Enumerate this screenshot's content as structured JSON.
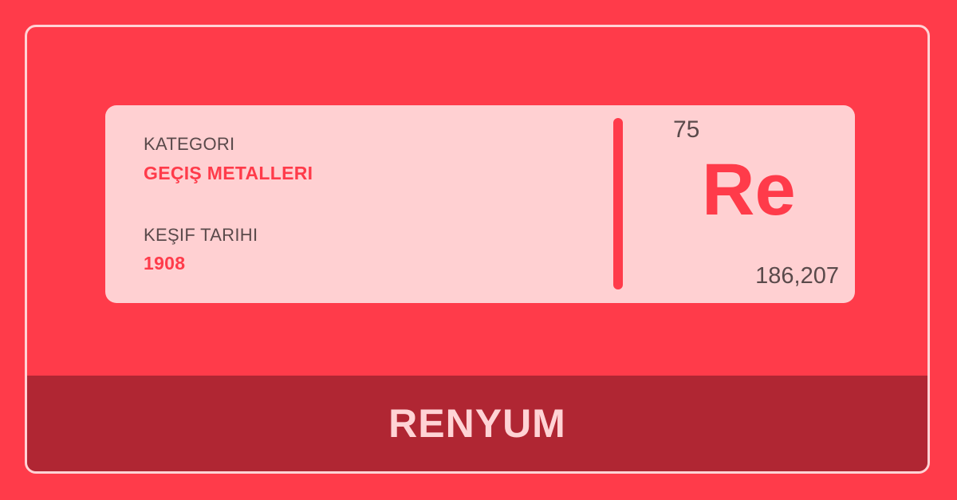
{
  "card": {
    "category_label": "KATEGORI",
    "category_value": "GEÇIŞ METALLERI",
    "discovery_label": "KEŞIF TARIHI",
    "discovery_value": "1908"
  },
  "element": {
    "atomic_number": "75",
    "symbol": "Re",
    "atomic_mass": "186,207",
    "name": "RENYUM"
  },
  "colors": {
    "background": "#ff3b4a",
    "card": "#ffd0d2",
    "footer": "#b02633",
    "text_dark": "#5a4a4b"
  }
}
